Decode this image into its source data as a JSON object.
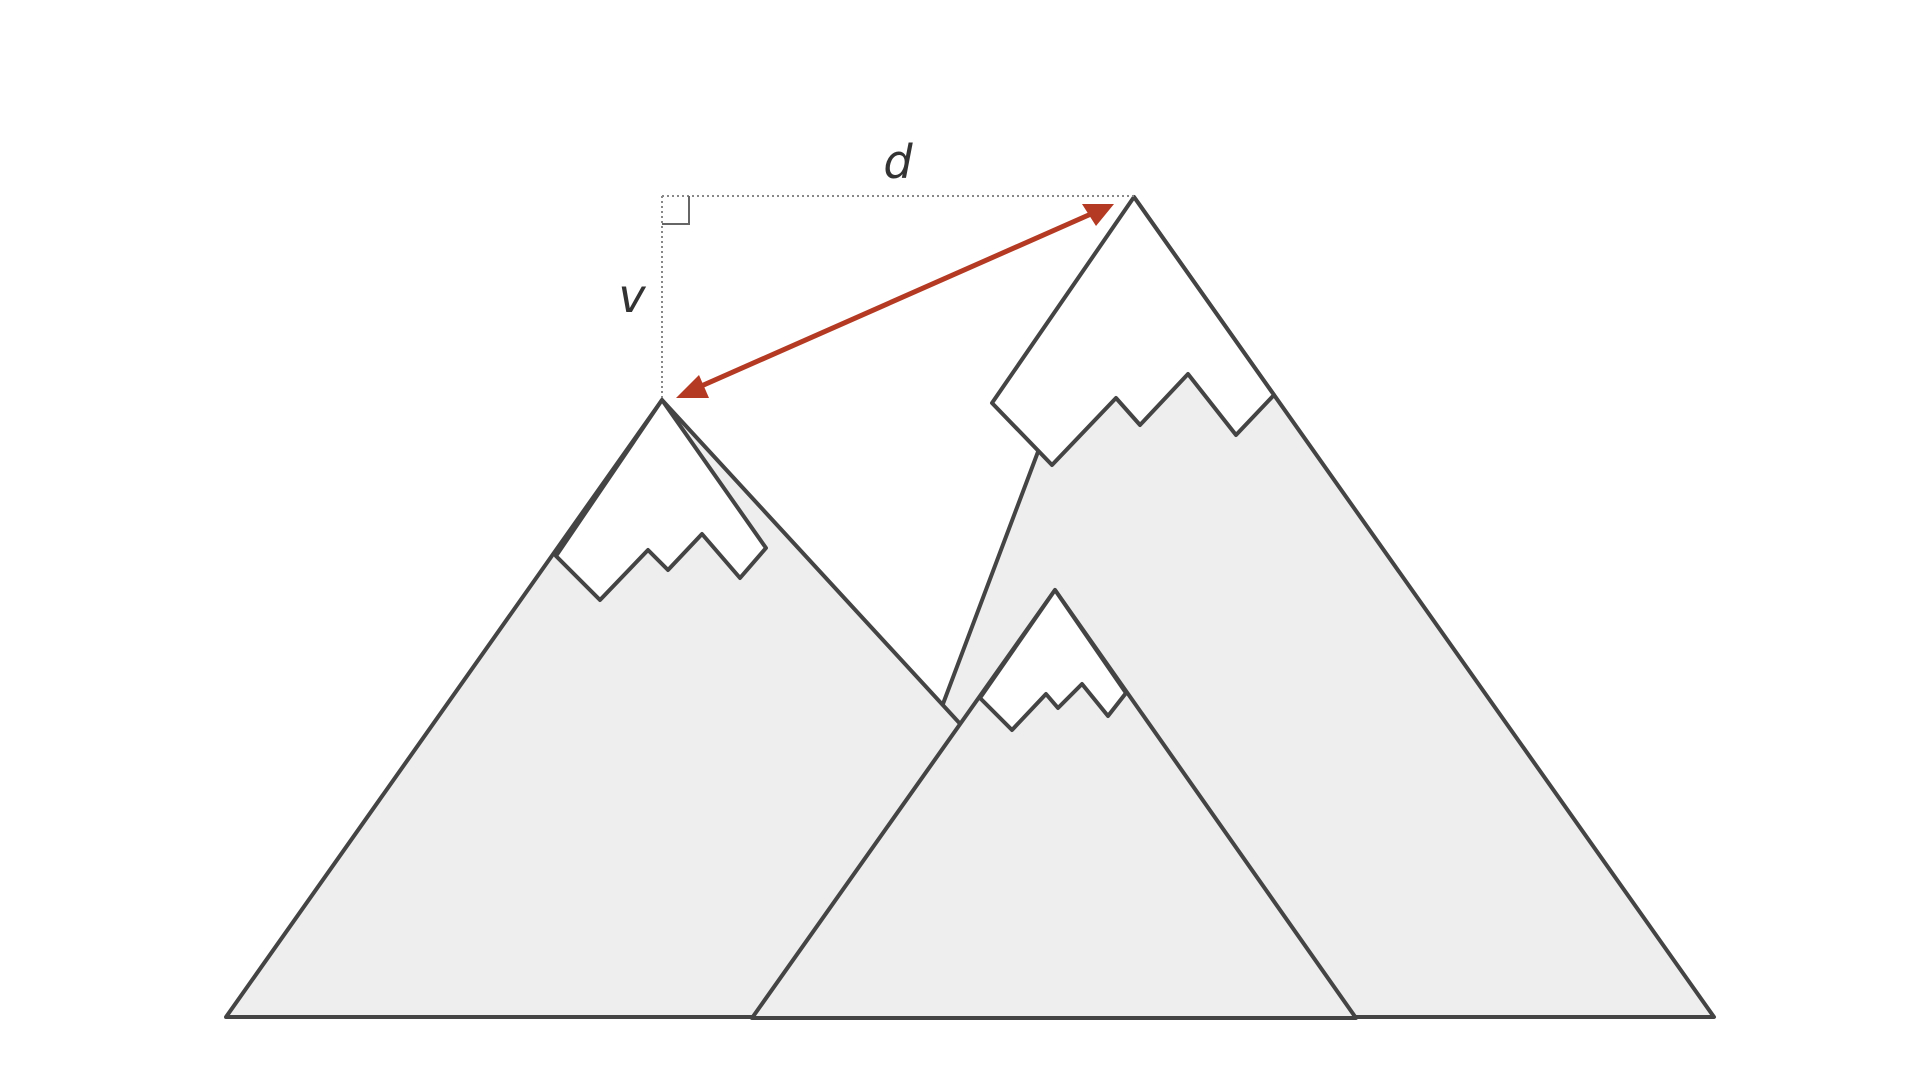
{
  "diagram": {
    "labels": {
      "horizontal_distance": "d",
      "vertical_distance": "v"
    },
    "colors": {
      "mountain_fill": "#eeeeee",
      "snow_fill": "#ffffff",
      "outline": "#444444",
      "arrow": "#b53a24",
      "guide_line": "#888888",
      "label_text": "#333333"
    },
    "elements": [
      "left-mountain",
      "right-mountain",
      "front-mountain",
      "distance-arrow",
      "horizontal-guide",
      "vertical-guide",
      "right-angle-marker"
    ]
  }
}
